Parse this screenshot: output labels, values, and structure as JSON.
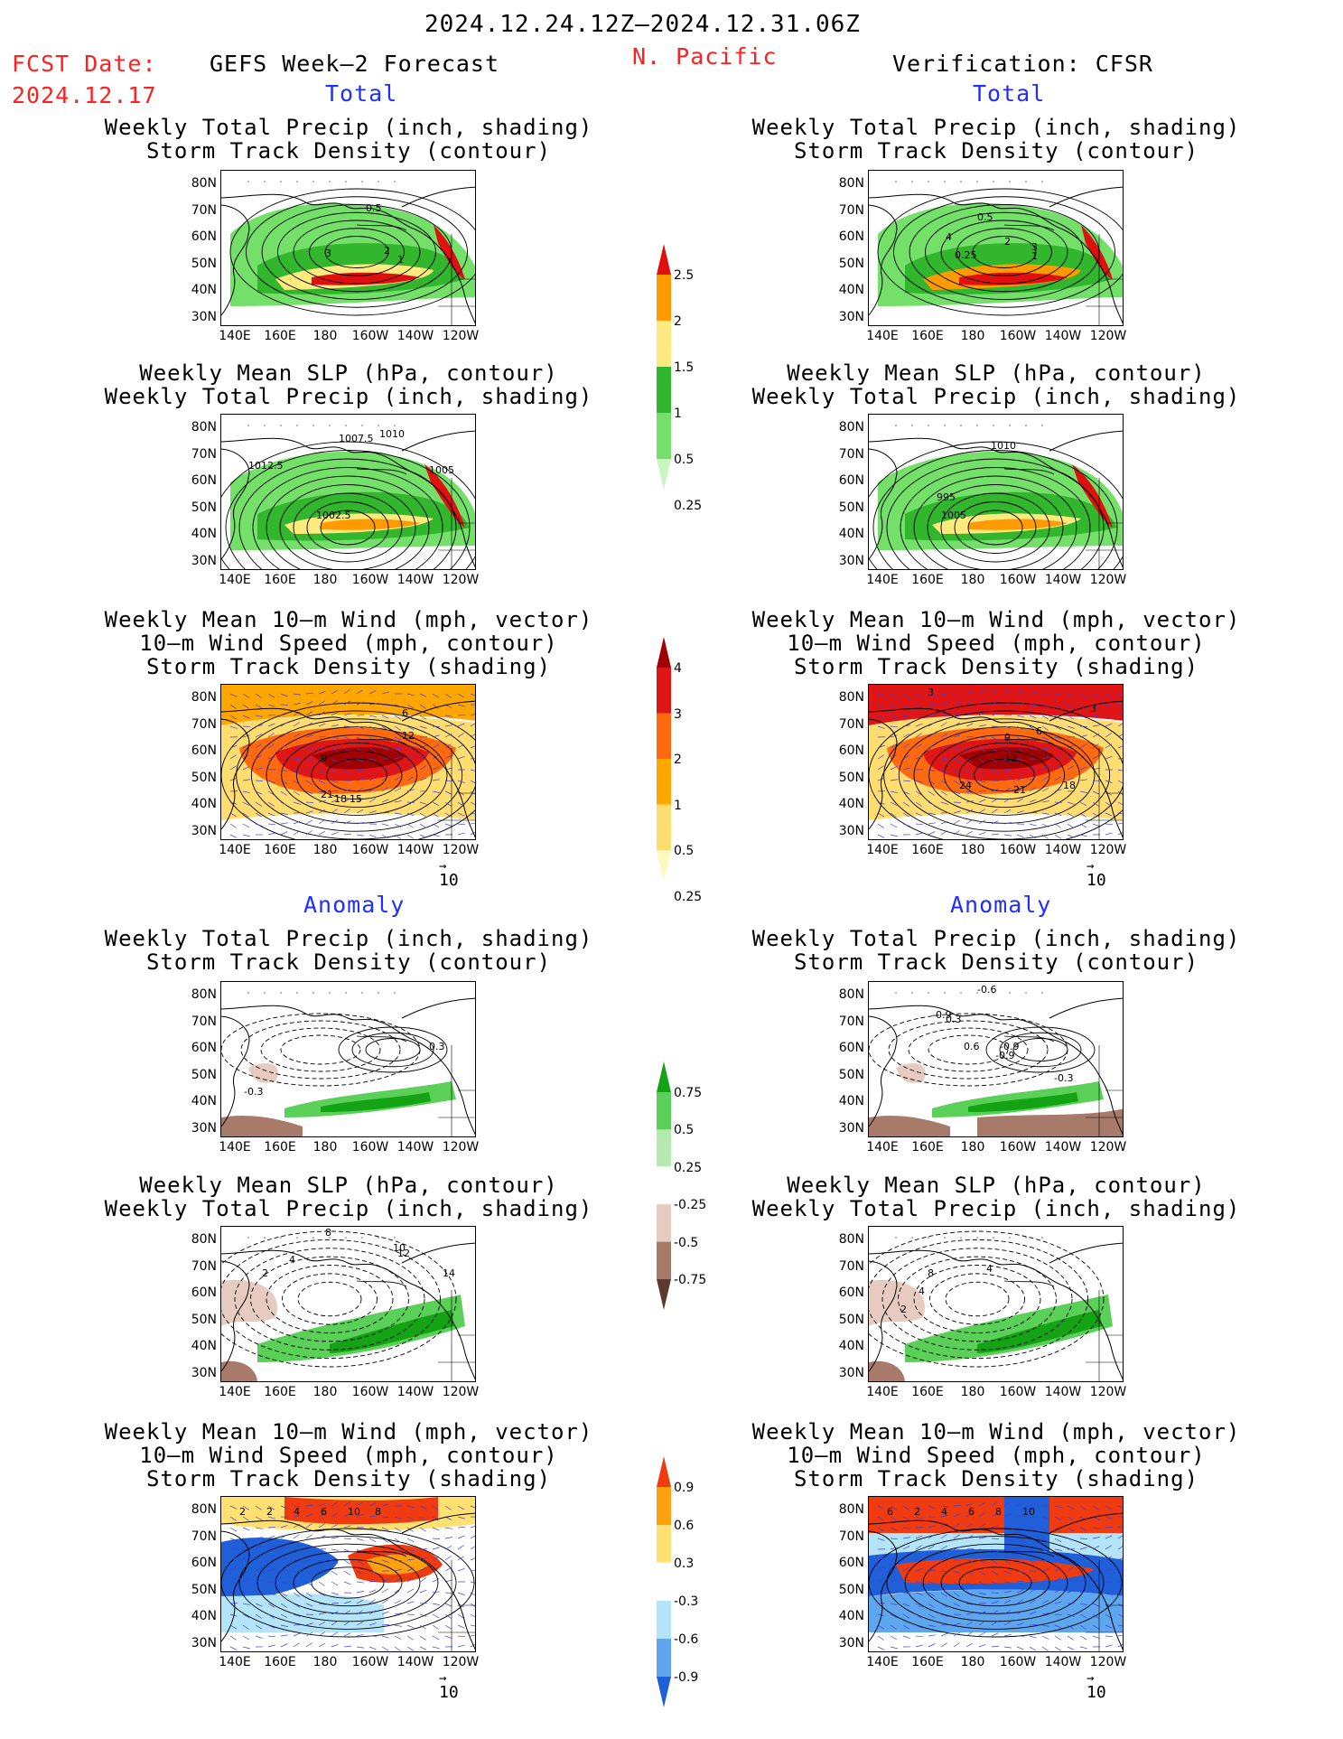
{
  "header": {
    "period": "2024.12.24.12Z—2024.12.31.06Z",
    "fcst_label": "FCST Date:",
    "fcst_date": "2024.12.17",
    "left_title": "GEFS Week—2 Forecast",
    "region": "N. Pacific",
    "right_title": "Verification: CFSR",
    "total_label": "Total",
    "anomaly_label": "Anomaly"
  },
  "axes": {
    "lat_labels": [
      "80N",
      "70N",
      "60N",
      "50N",
      "40N",
      "30N"
    ],
    "lon_labels": [
      "140E",
      "160E",
      "180",
      "160W",
      "140W",
      "120W"
    ]
  },
  "panel_titles": {
    "precip_storm": [
      "Weekly Total Precip (inch, shading)",
      "Storm Track Density (contour)"
    ],
    "slp_precip": [
      "Weekly Mean SLP (hPa, contour)",
      "Weekly Total Precip (inch, shading)"
    ],
    "wind_storm": [
      "Weekly Mean 10—m Wind (mph, vector)",
      "10—m Wind Speed (mph, contour)",
      "Storm Track Density (shading)"
    ]
  },
  "vector_ref": "10",
  "colorbars": [
    {
      "name": "total-precip",
      "colors": [
        "#c8f5c0",
        "#74e06a",
        "#31b62e",
        "#ffea80",
        "#ff9a00",
        "#e01010"
      ],
      "labels": [
        "0.25",
        "0.5",
        "1",
        "1.5",
        "2",
        "2.5"
      ]
    },
    {
      "name": "total-storm",
      "colors": [
        "#fff9c0",
        "#ffdd70",
        "#ffa600",
        "#ff6a10",
        "#e01515",
        "#a00000"
      ],
      "labels": [
        "0.25",
        "0.5",
        "1",
        "2",
        "3",
        "4"
      ]
    },
    {
      "name": "anom-precip",
      "colors": [
        "#5c3a2e",
        "#a87a6a",
        "#e8cbc0",
        "#ffffff",
        "#b4eab0",
        "#5ad058",
        "#14a314"
      ],
      "labels": [
        "-0.75",
        "-0.5",
        "-0.25",
        "0.25",
        "0.5",
        "0.75"
      ]
    },
    {
      "name": "anom-storm",
      "colors": [
        "#1f5fd8",
        "#5ea6ee",
        "#b4e4f8",
        "#ffffff",
        "#ffe070",
        "#ffa010",
        "#f03a10"
      ],
      "labels": [
        "-0.9",
        "-0.6",
        "-0.3",
        "0.3",
        "0.6",
        "0.9"
      ]
    }
  ],
  "contour_labels": {
    "l_precip": [
      "0.5",
      "3",
      "2",
      "1"
    ],
    "r_precip": [
      "0.5",
      "4",
      "2",
      "3",
      "1",
      "0.25"
    ],
    "l_slp": [
      "1007.5",
      "1010",
      "1012.5",
      "1005",
      "1002.5"
    ],
    "r_slp": [
      "1010",
      "995",
      "1005"
    ],
    "l_wind": [
      "6",
      "12",
      "9",
      "21",
      "18",
      "15"
    ],
    "r_wind": [
      "3",
      "3",
      "9",
      "6",
      "12",
      "24",
      "21",
      "18"
    ],
    "l_aprecip": [
      "0.3",
      "-0.3"
    ],
    "r_aprecip": [
      "-0.6",
      "-0.9",
      "0.3",
      "0.6",
      "-0.9",
      "-0.9",
      "-0.3"
    ],
    "l_aslp": [
      "8",
      "10",
      "12",
      "4",
      "2",
      "14"
    ],
    "r_aslp": [
      "8",
      "4",
      "4",
      "2"
    ],
    "l_awind": [
      "2",
      "2",
      "4",
      "6",
      "10",
      "8"
    ],
    "r_awind": [
      "6",
      "2",
      "4",
      "6",
      "8",
      "10"
    ]
  }
}
